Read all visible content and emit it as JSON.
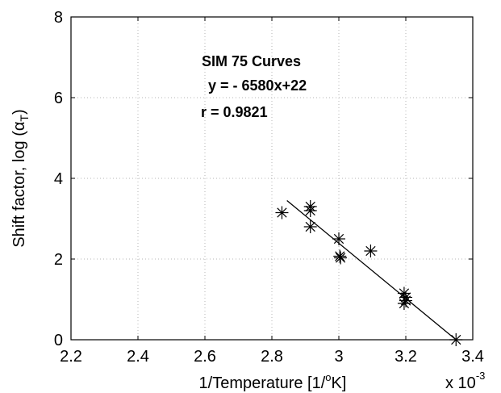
{
  "chart_data": {
    "type": "scatter",
    "title": "",
    "xlabel_main": "1/Temperature   [1/",
    "xlabel_sup": "o",
    "xlabel_end": "K]",
    "ylabel_main": "Shift factor, log (",
    "ylabel_symbol": "α",
    "ylabel_sub": "T",
    "ylabel_end": ")",
    "x_multiplier_base": "x 10",
    "x_multiplier_exp": "-3",
    "xlim": [
      2.2,
      3.4
    ],
    "ylim": [
      0,
      8
    ],
    "xticks": [
      2.2,
      2.4,
      2.6,
      2.8,
      3.0,
      3.2,
      3.4
    ],
    "xtick_labels": [
      "2.2",
      "2.4",
      "2.6",
      "2.8",
      "3",
      "3.2",
      "3.4"
    ],
    "yticks": [
      0,
      2,
      4,
      6,
      8
    ],
    "ytick_labels": [
      "0",
      "2",
      "4",
      "6",
      "8"
    ],
    "grid": true,
    "annotations": [
      "SIM 75 Curves",
      "y = - 6580x+22",
      "r = 0.9821"
    ],
    "points": [
      {
        "x": 2.83,
        "y": 3.15
      },
      {
        "x": 2.915,
        "y": 3.3
      },
      {
        "x": 2.915,
        "y": 3.2
      },
      {
        "x": 2.915,
        "y": 2.8
      },
      {
        "x": 3.0,
        "y": 2.5
      },
      {
        "x": 3.003,
        "y": 2.07
      },
      {
        "x": 3.005,
        "y": 2.03
      },
      {
        "x": 3.095,
        "y": 2.2
      },
      {
        "x": 3.195,
        "y": 1.15
      },
      {
        "x": 3.2,
        "y": 1.05
      },
      {
        "x": 3.2,
        "y": 0.97
      },
      {
        "x": 3.195,
        "y": 0.9
      },
      {
        "x": 3.35,
        "y": 0.0
      }
    ],
    "fit_line": {
      "x": [
        2.845,
        3.35
      ],
      "y": [
        3.45,
        0.0
      ]
    }
  }
}
